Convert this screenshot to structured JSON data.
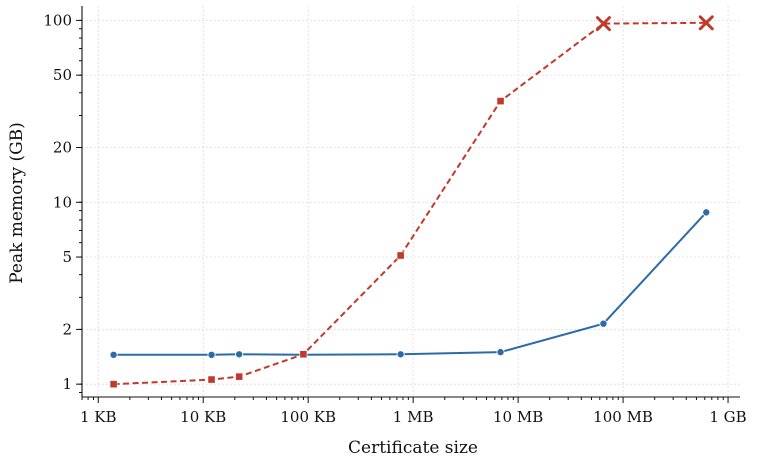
{
  "chart_data": {
    "type": "line",
    "title": "",
    "xlabel": "Certificate size",
    "ylabel": "Peak memory (GB)",
    "x_scale": "log",
    "y_scale": "log",
    "xlim_bytes": [
      700,
      1300000000
    ],
    "ylim": [
      0.85,
      120
    ],
    "grid": true,
    "legend": "none",
    "x_ticks": [
      {
        "value": 1000,
        "label": "1 KB"
      },
      {
        "value": 10000,
        "label": "10 KB"
      },
      {
        "value": 100000,
        "label": "100 KB"
      },
      {
        "value": 1000000,
        "label": "1 MB"
      },
      {
        "value": 10000000,
        "label": "10 MB"
      },
      {
        "value": 100000000,
        "label": "100 MB"
      },
      {
        "value": 1000000000,
        "label": "1 GB"
      }
    ],
    "y_ticks": [
      {
        "value": 1,
        "label": "1"
      },
      {
        "value": 2,
        "label": "2"
      },
      {
        "value": 5,
        "label": "5"
      },
      {
        "value": 10,
        "label": "10"
      },
      {
        "value": 20,
        "label": "20"
      },
      {
        "value": 50,
        "label": "50"
      },
      {
        "value": 100,
        "label": "100"
      }
    ],
    "series": [
      {
        "color": "#2b6ca8",
        "line_style": "solid",
        "marker": "circle",
        "points": [
          {
            "x": 1400,
            "y": 1.45
          },
          {
            "x": 12000,
            "y": 1.45
          },
          {
            "x": 22000,
            "y": 1.46
          },
          {
            "x": 90000,
            "y": 1.45
          },
          {
            "x": 760000,
            "y": 1.46
          },
          {
            "x": 6800000,
            "y": 1.5
          },
          {
            "x": 65000000,
            "y": 2.15
          },
          {
            "x": 620000000,
            "y": 8.8
          }
        ]
      },
      {
        "color": "#c0392b",
        "line_style": "dashed",
        "marker": "square",
        "points": [
          {
            "x": 1400,
            "y": 1.0
          },
          {
            "x": 12000,
            "y": 1.06
          },
          {
            "x": 22000,
            "y": 1.1
          },
          {
            "x": 90000,
            "y": 1.46
          },
          {
            "x": 760000,
            "y": 5.1
          },
          {
            "x": 6800000,
            "y": 36
          },
          {
            "x": 65000000,
            "y": 96,
            "marker": "x"
          },
          {
            "x": 620000000,
            "y": 97,
            "marker": "x"
          }
        ]
      }
    ]
  }
}
